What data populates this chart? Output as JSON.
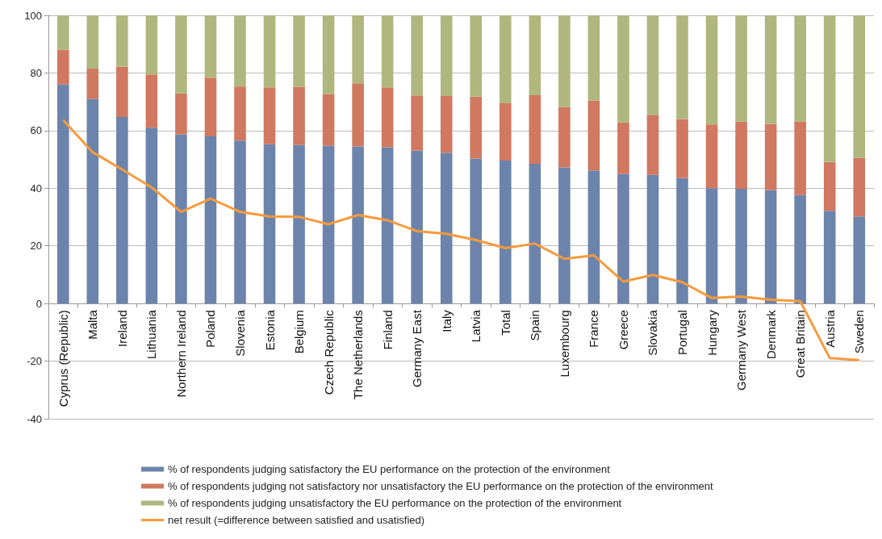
{
  "chart_data": {
    "type": "bar",
    "stacked": true,
    "categories": [
      "Cyprus (Republic)",
      "Malta",
      "Ireland",
      "Lithuania",
      "Northern Ireland",
      "Poland",
      "Slovenia",
      "Estonia",
      "Belgium",
      "Czech Republic",
      "The Netherlands",
      "Finland",
      "Germany East",
      "Italy",
      "Latvia",
      "Total",
      "Spain",
      "Luxembourg",
      "France",
      "Greece",
      "Slovakia",
      "Portugal",
      "Hungary",
      "Germany West",
      "Denmark",
      "Great Britain",
      "Austria",
      "Sweden"
    ],
    "series": [
      {
        "name": "% of respondents judging satisfactory the EU performance on the protection of the environment",
        "color": "#6c84ab",
        "values": [
          76,
          71,
          64.7,
          61,
          58.7,
          58,
          56.5,
          55.3,
          55,
          54.8,
          54.5,
          54.2,
          53.1,
          52.3,
          50.3,
          49.6,
          48.5,
          47.2,
          46.2,
          45,
          44.6,
          43.5,
          40,
          39.8,
          39.4,
          37.6,
          32.2,
          30.2
        ]
      },
      {
        "name": "% of respondents judging not satisfactory nor unsatisfactory the EU performance on the protection of the environment",
        "color": "#d07860",
        "values": [
          12,
          10.5,
          17.5,
          18.5,
          14.2,
          20.4,
          18.8,
          19.7,
          20.2,
          17.9,
          21.9,
          20.8,
          19.1,
          19.7,
          21.5,
          19.9,
          23.8,
          21,
          24.2,
          17.9,
          20.9,
          20.5,
          22.1,
          23.3,
          22.9,
          25.6,
          16.9,
          20.3
        ]
      },
      {
        "name": "% of respondents judging unsatisfactory the EU performance on the protection of the environment",
        "color": "#b0b77e",
        "values": [
          12,
          18.5,
          17.8,
          20.5,
          27.1,
          21.6,
          24.7,
          25,
          24.8,
          27.3,
          23.6,
          25,
          27.8,
          28,
          28.2,
          30.5,
          27.7,
          31.8,
          29.6,
          37.1,
          34.5,
          36,
          37.9,
          36.9,
          37.7,
          36.8,
          50.9,
          49.5
        ]
      },
      {
        "name": "net result (=difference between satisfied and usatisfied)",
        "type": "line",
        "color": "#f79a3c",
        "marker": "none",
        "values": [
          63.7,
          52.5,
          46.5,
          40.3,
          31.8,
          36.4,
          31.8,
          30.2,
          30.1,
          27.5,
          30.7,
          28.9,
          25.1,
          24.2,
          22,
          19.2,
          20.8,
          15.5,
          16.7,
          7.6,
          9.9,
          7.4,
          1.9,
          2.4,
          1.3,
          0.8,
          -18.9,
          -19.6
        ]
      }
    ],
    "ylim": [
      -40,
      100
    ],
    "yticks": [
      -40,
      -20,
      0,
      20,
      40,
      60,
      80,
      100
    ],
    "grid": "y",
    "legend": "bottom"
  }
}
